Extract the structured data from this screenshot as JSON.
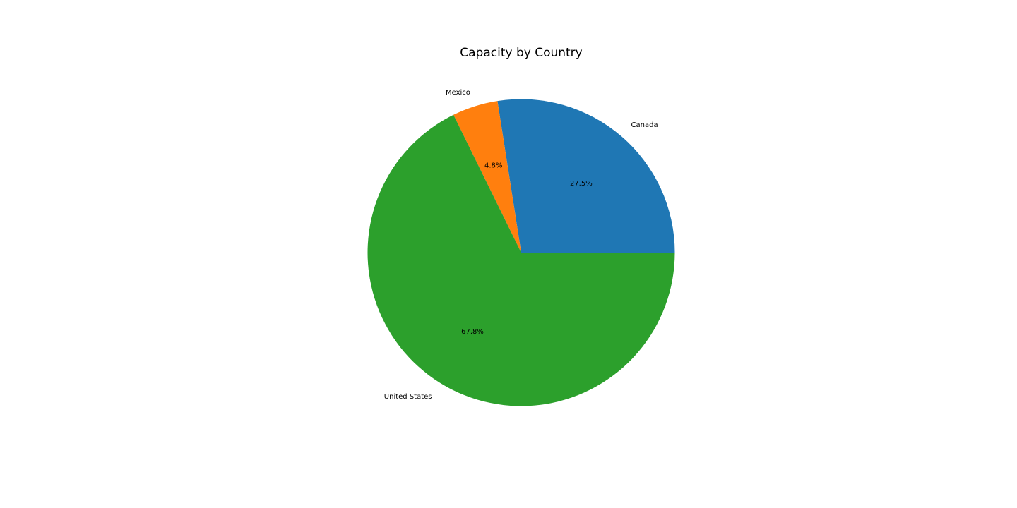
{
  "chart_data": {
    "type": "pie",
    "title": "Capacity by Country",
    "slices": [
      {
        "label": "Canada",
        "percent": 27.5,
        "percent_label": "27.5%",
        "color": "#1f77b4"
      },
      {
        "label": "Mexico",
        "percent": 4.8,
        "percent_label": "4.8%",
        "color": "#ff7f0e"
      },
      {
        "label": "United States",
        "percent": 67.8,
        "percent_label": "67.8%",
        "color": "#2ca02c"
      }
    ],
    "start_angle_deg": 0,
    "direction": "counterclockwise",
    "legend": "none"
  }
}
